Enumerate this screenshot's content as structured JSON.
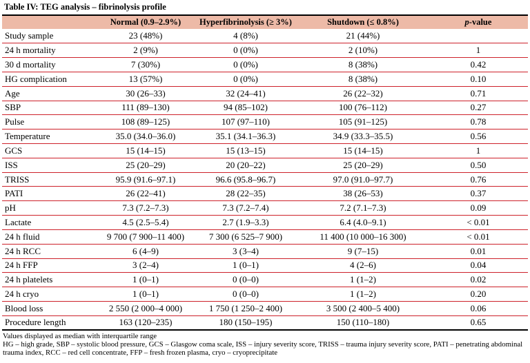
{
  "title": "Table IV: TEG analysis – fibrinolysis profile",
  "colors": {
    "header_background": "#edbaa7",
    "row_divider": "#cd2029",
    "frame_border": "#000000",
    "text": "#000000"
  },
  "table": {
    "headers": {
      "parameter": "",
      "normal": "Normal (0.9–2.9%)",
      "hyperfibrinolysis": "Hyperfibrinolysis (≥ 3%)",
      "shutdown": "Shutdown (≤ 0.8%)",
      "p_value_italic": "p",
      "p_value_rest": "-value"
    },
    "rows": [
      [
        "Study sample",
        "23 (48%)",
        "4 (8%)",
        "21 (44%)",
        ""
      ],
      [
        "24 h mortality",
        "2 (9%)",
        "0 (0%)",
        "2 (10%)",
        "1"
      ],
      [
        "30 d mortality",
        "7 (30%)",
        "0 (0%)",
        "8 (38%)",
        "0.42"
      ],
      [
        "HG complication",
        "13 (57%)",
        "0 (0%)",
        "8 (38%)",
        "0.10"
      ],
      [
        "Age",
        "30 (26–33)",
        "32 (24–41)",
        "26 (22–32)",
        "0.71"
      ],
      [
        "SBP",
        "111 (89–130)",
        "94 (85–102)",
        "100 (76–112)",
        "0.27"
      ],
      [
        "Pulse",
        "108 (89–125)",
        "107 (97–110)",
        "105 (91–125)",
        "0.78"
      ],
      [
        "Temperature",
        "35.0 (34.0–36.0)",
        "35.1 (34.1–36.3)",
        "34.9 (33.3–35.5)",
        "0.56"
      ],
      [
        "GCS",
        "15 (14–15)",
        "15 (13–15)",
        "15 (14–15)",
        "1"
      ],
      [
        "ISS",
        "25 (20–29)",
        "20 (20–22)",
        "25 (20–29)",
        "0.50"
      ],
      [
        "TRISS",
        "95.9 (91.6–97.1)",
        "96.6 (95.8–96.7)",
        "97.0 (91.0–97.7)",
        "0.76"
      ],
      [
        "PATI",
        "26 (22–41)",
        "28 (22–35)",
        "38 (26–53)",
        "0.37"
      ],
      [
        "pH",
        "7.3 (7.2–7.3)",
        "7.3 (7.2–7.4)",
        "7.2 (7.1–7.3)",
        "0.09"
      ],
      [
        "Lactate",
        "4.5 (2.5–5.4)",
        "2.7 (1.9–3.3)",
        "6.4 (4.0–9.1)",
        "< 0.01"
      ],
      [
        "24 h fluid",
        "9 700 (7 900–11 400)",
        "7 300 (6 525–7 900)",
        "11 400 (10 000–16 300)",
        "< 0.01"
      ],
      [
        "24 h RCC",
        "6 (4–9)",
        "3 (3–4)",
        "9 (7–15)",
        "0.01"
      ],
      [
        "24 h FFP",
        "3 (2–4)",
        "1 (0–1)",
        "4 (2–6)",
        "0.04"
      ],
      [
        "24 h platelets",
        "1 (0–1)",
        "0 (0–0)",
        "1 (1–2)",
        "0.02"
      ],
      [
        "24 h cryo",
        "1 (0–1)",
        "0 (0–0)",
        "1 (1–2)",
        "0.20"
      ],
      [
        "Blood loss",
        "2 550 (2 000–4 000)",
        "1 750 (1 250–2 400)",
        "3 500 (2 400–5 400)",
        "0.06"
      ],
      [
        "Procedure length",
        "163 (120–235)",
        "180 (150–195)",
        "150 (110–180)",
        "0.65"
      ]
    ]
  },
  "footnotes": [
    "Values displayed as median with interquartile range",
    "HG – high grade, SBP – systolic blood pressure, GCS – Glasgow coma scale, ISS – injury severity score, TRISS – trauma injury severity score, PATI – penetrating abdominal trauma index, RCC – red cell concentrate, FFP – fresh frozen plasma, cryo – cryoprecipitate"
  ]
}
